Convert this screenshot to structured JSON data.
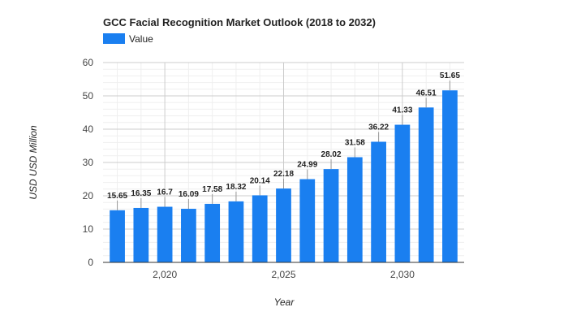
{
  "chart_data": {
    "type": "bar",
    "title": "GCC Facial Recognition Market Outlook (2018 to 2032)",
    "xlabel": "Year",
    "ylabel": "USD USD Million",
    "legend": {
      "position": "top-left",
      "entries": [
        "Value"
      ]
    },
    "grid": true,
    "ylim": [
      0,
      60
    ],
    "yticks": [
      0,
      10,
      20,
      30,
      40,
      50,
      60
    ],
    "xlim": [
      2017.4,
      2032.6
    ],
    "xticks": [
      2020,
      2025,
      2030
    ],
    "xtick_labels": [
      "2,020",
      "2,025",
      "2,030"
    ],
    "series": [
      {
        "name": "Value",
        "color": "#1a7ff0",
        "x": [
          2018,
          2019,
          2020,
          2021,
          2022,
          2023,
          2024,
          2025,
          2026,
          2027,
          2028,
          2029,
          2030,
          2031,
          2032
        ],
        "values": [
          15.65,
          16.35,
          16.7,
          16.09,
          17.58,
          18.32,
          20.14,
          22.18,
          24.99,
          28.02,
          31.58,
          36.22,
          41.33,
          46.51,
          51.65
        ],
        "labels": [
          "15.65",
          "16.35",
          "16.7",
          "16.09",
          "17.58",
          "18.32",
          "20.14",
          "22.18",
          "24.99",
          "28.02",
          "31.58",
          "36.22",
          "41.33",
          "46.51",
          "51.65"
        ]
      }
    ]
  }
}
